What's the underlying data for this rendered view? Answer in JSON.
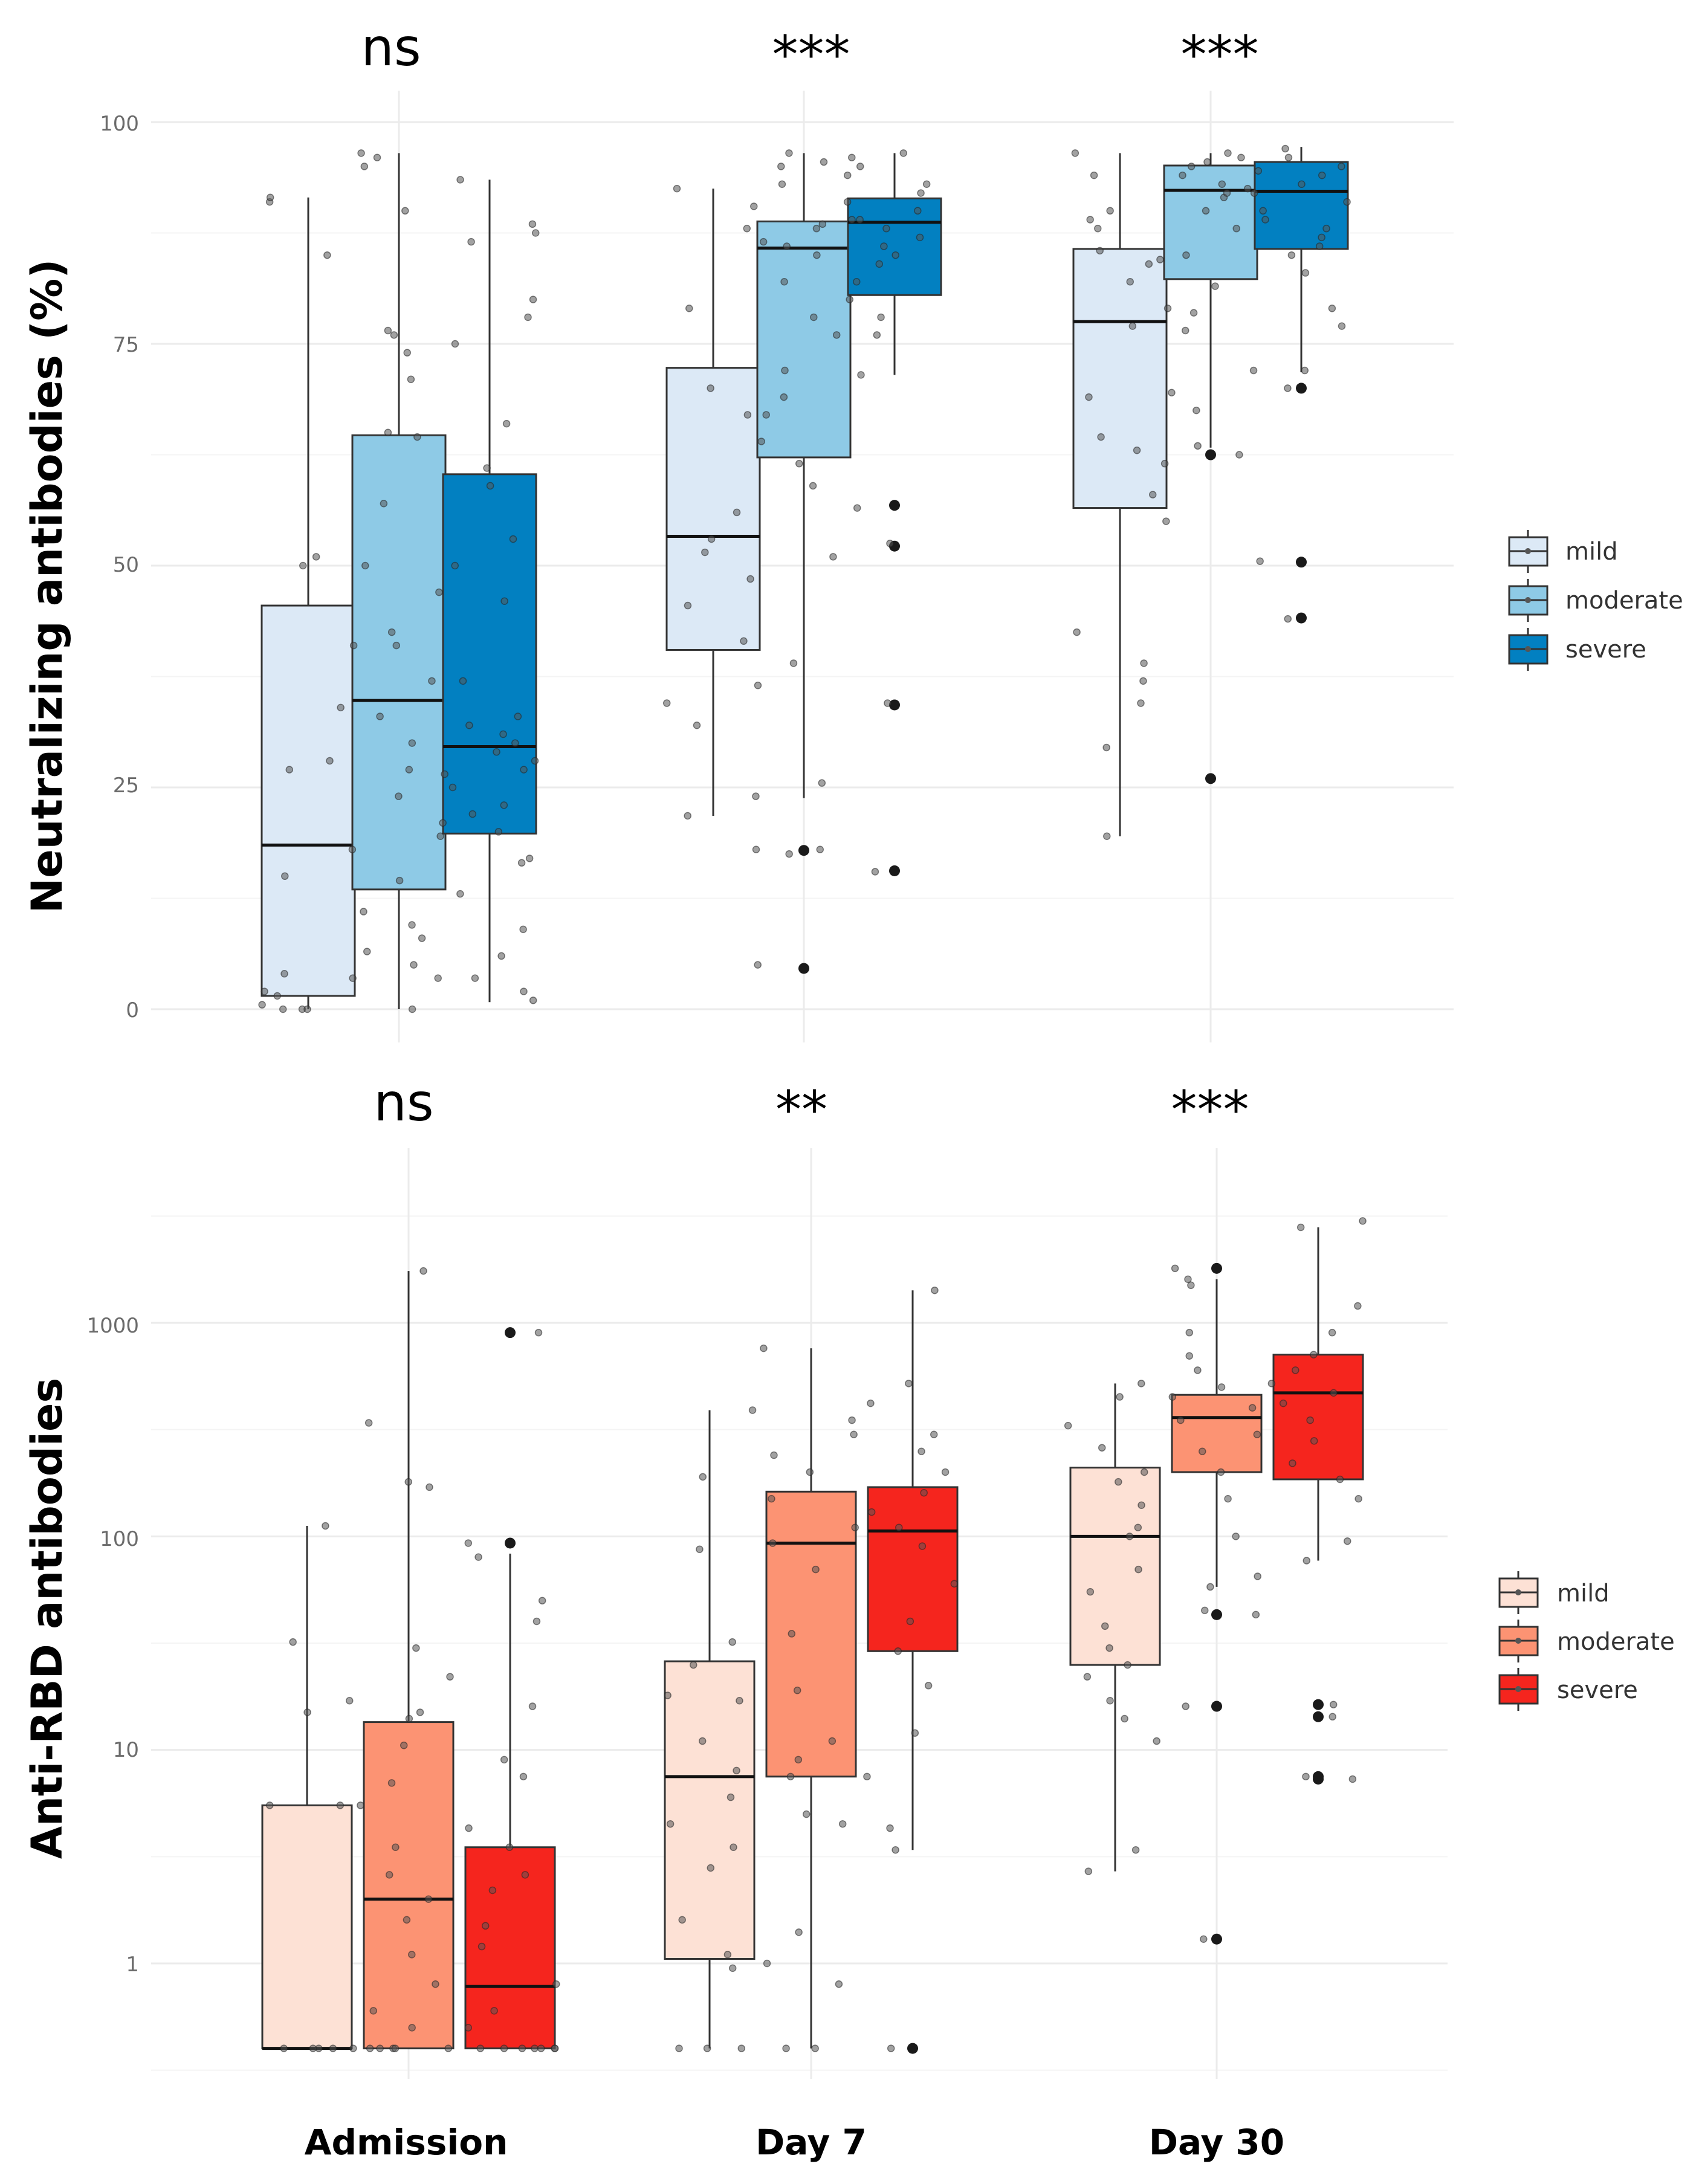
{
  "chart_data": [
    {
      "type": "box",
      "ylabel": "Neutralizing antibodies (%)",
      "yscale": "linear",
      "ylim": [
        0,
        100
      ],
      "yticks": [
        0,
        25,
        50,
        75,
        100
      ],
      "categories": [
        "Admission",
        "Day 7",
        "Day 30"
      ],
      "significance": [
        "ns",
        "***",
        "***"
      ],
      "legend": [
        "mild",
        "moderate",
        "severe"
      ],
      "colors": [
        "#dce9f6",
        "#8ecae6",
        "#0280c1"
      ],
      "series": [
        {
          "name": "mild",
          "boxes": [
            {
              "q1": 1.5,
              "median": 18.5,
              "q3": 45.5,
              "whisker_low": 0,
              "whisker_high": 91.5,
              "outliers": [],
              "points": [
                0,
                0,
                0,
                0.5,
                1.5,
                2,
                3.5,
                4,
                15,
                27,
                28,
                34,
                41,
                50,
                51,
                85,
                91,
                91.5
              ]
            },
            {
              "q1": 40.5,
              "median": 53.3,
              "q3": 72.3,
              "whisker_low": 21.8,
              "whisker_high": 92.5,
              "outliers": [],
              "points": [
                21.8,
                32,
                34.5,
                36.5,
                41.5,
                45.5,
                48.5,
                51.5,
                53,
                56,
                67,
                70,
                79,
                88,
                90.5,
                92.5
              ]
            },
            {
              "q1": 56.5,
              "median": 77.5,
              "q3": 85.7,
              "whisker_low": 19.5,
              "whisker_high": 96.5,
              "outliers": [],
              "points": [
                19.5,
                29.5,
                34.5,
                37,
                39,
                42.5,
                55,
                58,
                61.5,
                63,
                64.5,
                69,
                77,
                79,
                82,
                84,
                84.5,
                85.5,
                88,
                89,
                90,
                94,
                96.5
              ]
            }
          ]
        },
        {
          "name": "moderate",
          "boxes": [
            {
              "q1": 13.5,
              "median": 34.8,
              "q3": 64.7,
              "whisker_low": 0,
              "whisker_high": 96.5,
              "outliers": [],
              "points": [
                0,
                3.5,
                5,
                6.5,
                8,
                9.5,
                11,
                14.5,
                18,
                19.5,
                24,
                26.5,
                27,
                30,
                33,
                37,
                41,
                42.5,
                47,
                50,
                57,
                64.5,
                65,
                71,
                74,
                76,
                76.5,
                90,
                95,
                96,
                96.5
              ]
            },
            {
              "q1": 62.2,
              "median": 85.8,
              "q3": 88.8,
              "whisker_low": 23.8,
              "whisker_high": 96.5,
              "outliers": [
                4.6,
                17.9
              ],
              "points": [
                5,
                17.5,
                18,
                18,
                24,
                25.5,
                39,
                51,
                59,
                61.5,
                64,
                67,
                69,
                72,
                76,
                78,
                82,
                85,
                86,
                86.5,
                88,
                88.5,
                89,
                93,
                95,
                95.5,
                96.5
              ]
            },
            {
              "q1": 82.3,
              "median": 92.3,
              "q3": 95.1,
              "whisker_low": 63.3,
              "whisker_high": 96.5,
              "outliers": [
                62.5,
                26
              ],
              "points": [
                62.5,
                63.5,
                67.5,
                69.5,
                72,
                76.5,
                78.5,
                81.5,
                85,
                88,
                90,
                91.5,
                92,
                92.5,
                93,
                94,
                94.5,
                95,
                95.5,
                96,
                96.5
              ]
            }
          ]
        },
        {
          "name": "severe",
          "boxes": [
            {
              "q1": 19.8,
              "median": 29.6,
              "q3": 60.3,
              "whisker_low": 0.8,
              "whisker_high": 93.5,
              "outliers": [],
              "points": [
                1,
                2,
                3.5,
                6,
                9,
                13,
                16.5,
                17,
                20,
                21,
                22,
                23,
                25,
                27,
                28,
                29,
                30,
                31,
                32,
                33,
                37,
                46,
                50,
                53,
                59,
                61,
                66,
                75,
                78,
                80,
                86.5,
                87.5,
                88.5,
                93.5
              ]
            },
            {
              "q1": 80.5,
              "median": 88.7,
              "q3": 91.4,
              "whisker_low": 71.5,
              "whisker_high": 96.5,
              "outliers": [
                56.8,
                52.2,
                34.3,
                15.6
              ],
              "points": [
                15.5,
                34.5,
                52.5,
                56.5,
                71.5,
                76,
                78,
                80,
                82,
                84,
                85,
                86,
                87,
                88,
                89,
                90,
                91,
                92,
                93,
                94,
                95,
                96,
                96.5
              ]
            },
            {
              "q1": 85.7,
              "median": 92.2,
              "q3": 95.5,
              "whisker_low": 71.8,
              "whisker_high": 97.2,
              "outliers": [
                70,
                50.4,
                44.1
              ],
              "points": [
                44,
                50.5,
                70,
                72,
                77,
                79,
                83,
                85,
                86,
                87,
                88,
                89,
                90,
                91,
                92,
                93,
                94,
                95,
                96,
                97
              ]
            }
          ]
        }
      ]
    },
    {
      "type": "box",
      "ylabel": "Anti-RBD antibodies",
      "yscale": "log10",
      "ylim": [
        0.4,
        2000
      ],
      "yticks": [
        1,
        10,
        100,
        1000
      ],
      "ytick_labels": [
        "1",
        "10",
        "100",
        "1000"
      ],
      "categories": [
        "Admission",
        "Day 7",
        "Day 30"
      ],
      "significance": [
        "ns",
        "**",
        "***"
      ],
      "legend": [
        "mild",
        "moderate",
        "severe"
      ],
      "colors": [
        "#fde1d5",
        "#fc9373",
        "#f5251e"
      ],
      "series": [
        {
          "name": "mild",
          "boxes": [
            {
              "q1": 0.4,
              "median": 0.4,
              "q3": 5.5,
              "whisker_low": 0.4,
              "whisker_high": 112,
              "outliers": [],
              "points": [
                0.4,
                0.4,
                0.4,
                0.4,
                0.4,
                5.5,
                5.5,
                15,
                17,
                32,
                112
              ]
            },
            {
              "q1": 1.05,
              "median": 7.5,
              "q3": 26,
              "whisker_low": 0.4,
              "whisker_high": 390,
              "outliers": [],
              "points": [
                0.4,
                0.4,
                0.4,
                0.95,
                1.1,
                1.6,
                2.8,
                3.5,
                4.5,
                6,
                8,
                11,
                17,
                18,
                25,
                32,
                87,
                190,
                390
              ]
            },
            {
              "q1": 25,
              "median": 100,
              "q3": 210,
              "whisker_low": 2.7,
              "whisker_high": 520,
              "outliers": [],
              "points": [
                2.7,
                3.4,
                11,
                14,
                17,
                22,
                25,
                30,
                38,
                55,
                70,
                100,
                110,
                140,
                180,
                200,
                260,
                330,
                450,
                520
              ]
            }
          ]
        },
        {
          "name": "moderate",
          "boxes": [
            {
              "q1": 0.4,
              "median": 2,
              "q3": 13.5,
              "whisker_low": 0.4,
              "whisker_high": 1750,
              "outliers": [],
              "points": [
                0.4,
                0.4,
                0.4,
                0.4,
                0.4,
                0.5,
                0.6,
                0.8,
                1.1,
                1.6,
                2,
                2.6,
                3.5,
                5.5,
                7,
                10.5,
                14,
                15,
                22,
                30,
                170,
                180,
                340,
                1750
              ]
            },
            {
              "q1": 7.5,
              "median": 93,
              "q3": 162,
              "whisker_low": 0.4,
              "whisker_high": 760,
              "outliers": [],
              "points": [
                0.4,
                0.4,
                0.8,
                1,
                1.4,
                4.5,
                5,
                7.5,
                9,
                11,
                19,
                35,
                70,
                93,
                110,
                150,
                200,
                240,
                300,
                350,
                760
              ]
            },
            {
              "q1": 200,
              "median": 360,
              "q3": 460,
              "whisker_low": 58,
              "whisker_high": 1600,
              "outliers": [
                1800,
                43,
                16,
                1.3
              ],
              "points": [
                1.3,
                16,
                43,
                45,
                58,
                65,
                100,
                150,
                200,
                250,
                300,
                350,
                400,
                450,
                500,
                600,
                700,
                900,
                1500,
                1600,
                1800
              ]
            }
          ]
        },
        {
          "name": "severe",
          "boxes": [
            {
              "q1": 0.4,
              "median": 0.78,
              "q3": 3.5,
              "whisker_low": 0.4,
              "whisker_high": 83,
              "outliers": [
                93,
                900
              ],
              "points": [
                0.4,
                0.4,
                0.4,
                0.4,
                0.4,
                0.4,
                0.4,
                0.5,
                0.6,
                0.8,
                1.2,
                1.5,
                2.2,
                2.6,
                3.5,
                4.3,
                7.5,
                9,
                16,
                40,
                50,
                80,
                93,
                900
              ]
            },
            {
              "q1": 29,
              "median": 106,
              "q3": 170,
              "whisker_low": 3.4,
              "whisker_high": 1420,
              "outliers": [
                0.4
              ],
              "points": [
                0.4,
                3.4,
                4.3,
                7.5,
                12,
                20,
                29,
                40,
                60,
                90,
                110,
                130,
                160,
                200,
                250,
                300,
                420,
                520,
                1420
              ]
            },
            {
              "q1": 185,
              "median": 470,
              "q3": 710,
              "whisker_low": 77,
              "whisker_high": 2800,
              "outliers": [
                16.3,
                14.3,
                7.5,
                7.3
              ],
              "points": [
                7.3,
                7.5,
                14.3,
                16.3,
                77,
                95,
                150,
                185,
                220,
                280,
                350,
                420,
                470,
                520,
                600,
                710,
                900,
                1200,
                2800,
                3000
              ]
            }
          ]
        }
      ]
    }
  ]
}
